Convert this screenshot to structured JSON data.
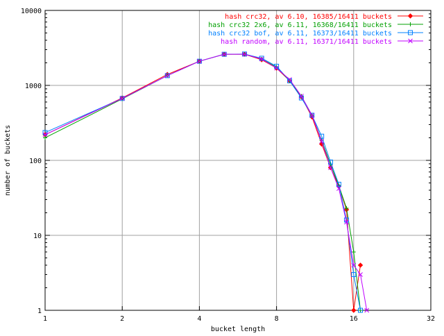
{
  "chart_data": {
    "type": "line",
    "xlabel": "bucket length",
    "ylabel": "number of buckets",
    "x_scale": "log2",
    "y_scale": "log10",
    "xlim": [
      1,
      32
    ],
    "ylim": [
      1,
      10000
    ],
    "x_ticks": [
      {
        "value": 1,
        "label": "1"
      },
      {
        "value": 2,
        "label": "2"
      },
      {
        "value": 4,
        "label": "4"
      },
      {
        "value": 8,
        "label": "8"
      },
      {
        "value": 16,
        "label": "16"
      },
      {
        "value": 32,
        "label": "32"
      }
    ],
    "y_ticks": [
      {
        "value": 1,
        "label": "1"
      },
      {
        "value": 10,
        "label": "10"
      },
      {
        "value": 100,
        "label": "100"
      },
      {
        "value": 1000,
        "label": "1000"
      },
      {
        "value": 10000,
        "label": "10000"
      }
    ],
    "grid": true,
    "legend_position": "top-right",
    "series": [
      {
        "name": "hash crc32, av 6.10, 16385/16411 buckets",
        "color": "#ff0000",
        "marker": "diamond",
        "x": [
          1,
          2,
          3,
          4,
          5,
          6,
          7,
          8,
          9,
          10,
          11,
          12,
          13,
          14,
          15,
          16,
          17
        ],
        "y": [
          220,
          680,
          1400,
          2100,
          2600,
          2600,
          2200,
          1700,
          1150,
          700,
          380,
          165,
          80,
          45,
          22,
          1,
          4
        ]
      },
      {
        "name": "hash crc32 2x6, av 6.11, 16368/16411 buckets",
        "color": "#00a000",
        "marker": "plus",
        "x": [
          1,
          2,
          3,
          4,
          5,
          6,
          7,
          8,
          9,
          10,
          11,
          12,
          13,
          14,
          15,
          16,
          17
        ],
        "y": [
          200,
          660,
          1350,
          2100,
          2600,
          2600,
          2250,
          1750,
          1150,
          720,
          400,
          185,
          88,
          46,
          23,
          6,
          1
        ]
      },
      {
        "name": "hash crc32 bof, av 6.11, 16373/16411 buckets",
        "color": "#0080ff",
        "marker": "square",
        "x": [
          1,
          2,
          3,
          4,
          5,
          6,
          7,
          8,
          9,
          10,
          11,
          12,
          13,
          14,
          15,
          16,
          17
        ],
        "y": [
          235,
          670,
          1350,
          2100,
          2600,
          2620,
          2300,
          1800,
          1150,
          680,
          400,
          210,
          95,
          48,
          16,
          3,
          1
        ]
      },
      {
        "name": "hash random, av 6.11, 16371/16411 buckets",
        "color": "#c000ff",
        "marker": "cross",
        "x": [
          1,
          2,
          3,
          4,
          5,
          6,
          7,
          8,
          9,
          10,
          11,
          12,
          13,
          14,
          15,
          16,
          17,
          18
        ],
        "y": [
          220,
          670,
          1350,
          2100,
          2600,
          2600,
          2250,
          1700,
          1200,
          720,
          400,
          180,
          80,
          42,
          15,
          4,
          3,
          1
        ]
      }
    ]
  }
}
